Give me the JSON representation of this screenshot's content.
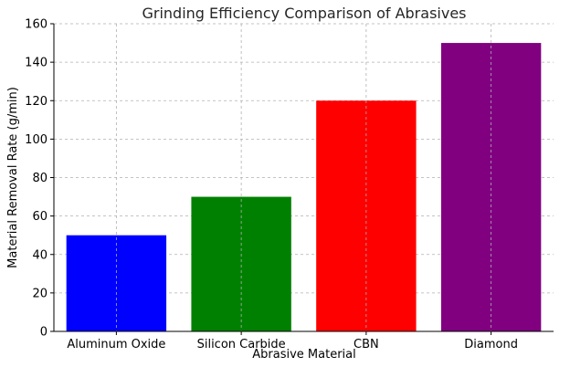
{
  "chart_data": {
    "type": "bar",
    "title": "Grinding Efficiency Comparison of Abrasives",
    "xlabel": "Abrasive Material",
    "ylabel": "Material Removal Rate (g/min)",
    "categories": [
      "Aluminum Oxide",
      "Silicon Carbide",
      "CBN",
      "Diamond"
    ],
    "values": [
      50,
      70,
      120,
      150
    ],
    "colors": [
      "#0000ff",
      "#008000",
      "#ff0000",
      "#800080"
    ],
    "ylim": [
      0,
      160
    ],
    "yticks": [
      0,
      20,
      40,
      60,
      80,
      100,
      120,
      140,
      160
    ],
    "grid": true
  }
}
